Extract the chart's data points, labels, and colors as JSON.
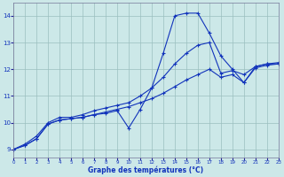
{
  "background_color": "#cce8e8",
  "grid_color": "#9bbfbf",
  "line_color": "#1133bb",
  "xlabel": "Graphe des températures (°C)",
  "xlim": [
    0,
    23
  ],
  "ylim": [
    8.7,
    14.5
  ],
  "xticks": [
    0,
    1,
    2,
    3,
    4,
    5,
    6,
    7,
    8,
    9,
    10,
    11,
    12,
    13,
    14,
    15,
    16,
    17,
    18,
    19,
    20,
    21,
    22,
    23
  ],
  "yticks": [
    9,
    10,
    11,
    12,
    13,
    14
  ],
  "s1_x": [
    0,
    1,
    2,
    3,
    4,
    5,
    6,
    7,
    8,
    9,
    10,
    11,
    12,
    13,
    14,
    15,
    16,
    17,
    18,
    19,
    20,
    21,
    22,
    23
  ],
  "s1_y": [
    9.0,
    9.15,
    9.4,
    9.95,
    10.1,
    10.15,
    10.2,
    10.3,
    10.4,
    10.5,
    10.6,
    10.75,
    10.9,
    11.1,
    11.35,
    11.6,
    11.8,
    12.0,
    11.7,
    11.8,
    11.5,
    12.05,
    12.15,
    12.2
  ],
  "s2_x": [
    0,
    1,
    2,
    3,
    4,
    5,
    6,
    7,
    8,
    9,
    10,
    11,
    12,
    13,
    14,
    15,
    16,
    17,
    18,
    19,
    20,
    21,
    22,
    23
  ],
  "s2_y": [
    9.0,
    9.2,
    9.5,
    10.0,
    10.2,
    10.2,
    10.3,
    10.45,
    10.55,
    10.65,
    10.75,
    11.0,
    11.3,
    11.7,
    12.2,
    12.6,
    12.9,
    13.0,
    11.85,
    11.95,
    11.8,
    12.1,
    12.2,
    12.25
  ],
  "s3_x": [
    0,
    1,
    2,
    3,
    4,
    5,
    6,
    7,
    8,
    9,
    10,
    11,
    12,
    13,
    14,
    15,
    16,
    17,
    18,
    19,
    20,
    21,
    22,
    23
  ],
  "s3_y": [
    9.0,
    9.15,
    9.4,
    9.95,
    10.1,
    10.15,
    10.2,
    10.3,
    10.35,
    10.45,
    9.8,
    10.5,
    11.3,
    12.6,
    14.0,
    14.1,
    14.1,
    13.35,
    12.5,
    12.0,
    11.5,
    12.1,
    12.2,
    12.2
  ]
}
